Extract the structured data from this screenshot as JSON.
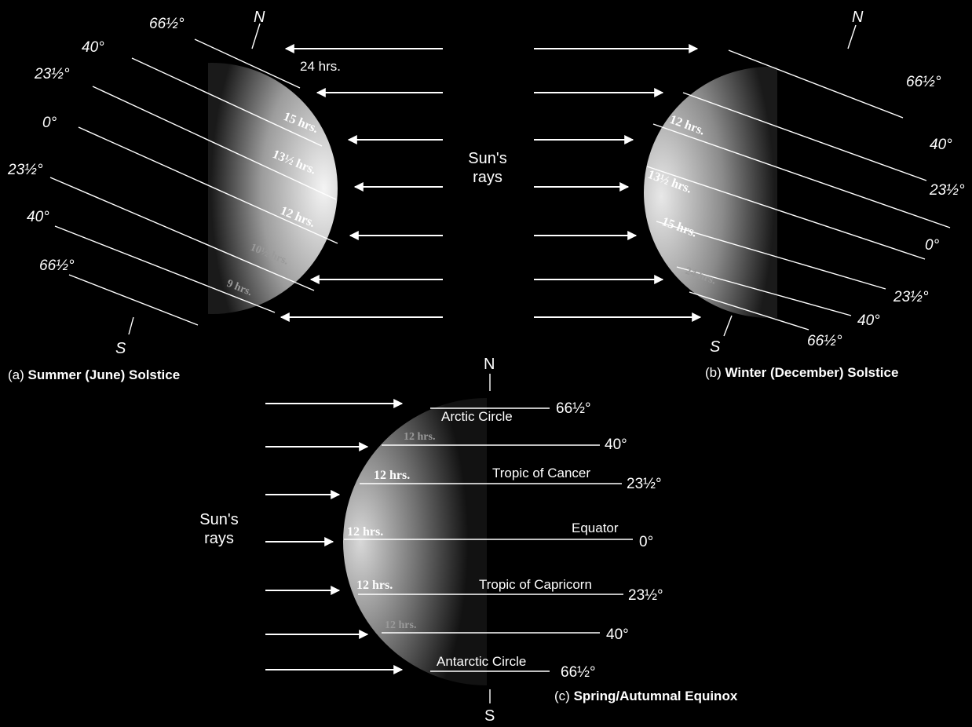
{
  "colors": {
    "background": "#000000",
    "ink": "#ffffff",
    "globe_light": "#f4f4f4",
    "globe_dark": "#222222"
  },
  "icons": {
    "arrowhead": "solid-triangle"
  },
  "summer": {
    "caption_prefix": "(a)",
    "caption": "Summer (June) Solstice",
    "north": "N",
    "south": "S",
    "latitudes": [
      "66½°",
      "40°",
      "23½°",
      "0°",
      "23½°",
      "40°",
      "66½°"
    ],
    "daylight": [
      "24 hrs.",
      "15 hrs.",
      "13½ hrs.",
      "12 hrs.",
      "10½ hrs.",
      "9 hrs."
    ]
  },
  "winter": {
    "caption_prefix": "(b)",
    "caption": "Winter (December) Solstice",
    "north": "N",
    "south": "S",
    "latitudes": [
      "66½°",
      "40°",
      "23½°",
      "0°",
      "23½°",
      "40°",
      "66½°"
    ],
    "daylight": [
      "12 hrs.",
      "13½ hrs.",
      "15 hrs.",
      "24 hrs."
    ]
  },
  "equinox": {
    "caption_prefix": "(c)",
    "caption": "Spring/Autumnal Equinox",
    "north": "N",
    "south": "S",
    "latitudes": [
      "66½°",
      "40°",
      "23½°",
      "0°",
      "23½°",
      "40°",
      "66½°"
    ],
    "zones": [
      "Arctic Circle",
      "Tropic of Cancer",
      "Equator",
      "Tropic of Capricorn",
      "Antarctic Circle"
    ],
    "daylight": [
      "12 hrs.",
      "12 hrs.",
      "12 hrs.",
      "12 hrs.",
      "12 hrs."
    ]
  },
  "sun_rays": {
    "line1": "Sun's",
    "line2": "rays"
  }
}
